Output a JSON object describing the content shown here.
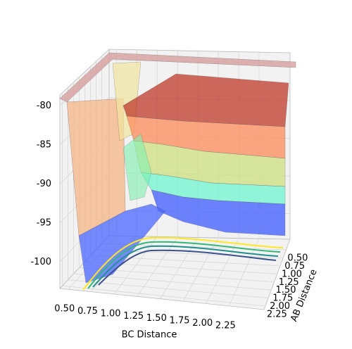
{
  "chart_data": {
    "type": "surface3d",
    "xlabel": "BC Distance",
    "ylabel": "AB Distance",
    "xlim": [
      0.41,
      2.63
    ],
    "ylim": [
      0.17,
      2.36
    ],
    "zlim": [
      -103.4,
      -78.6
    ],
    "xticks": [
      {
        "value": 0.5,
        "label": "0.50"
      },
      {
        "value": 0.75,
        "label": "0.75"
      },
      {
        "value": 1.0,
        "label": "1.00"
      },
      {
        "value": 1.25,
        "label": "1.25"
      },
      {
        "value": 1.5,
        "label": "1.50"
      },
      {
        "value": 1.75,
        "label": "1.75"
      },
      {
        "value": 2.0,
        "label": "2.00"
      },
      {
        "value": 2.25,
        "label": "2.25"
      }
    ],
    "yticks": [
      {
        "value": 0.5,
        "label": "0.50"
      },
      {
        "value": 0.75,
        "label": "0.75"
      },
      {
        "value": 1.0,
        "label": "1.00"
      },
      {
        "value": 1.25,
        "label": "1.25"
      },
      {
        "value": 1.5,
        "label": "1.50"
      },
      {
        "value": 1.75,
        "label": "1.75"
      },
      {
        "value": 2.0,
        "label": "2.00"
      },
      {
        "value": 2.25,
        "label": "2.25"
      }
    ],
    "zticks": [
      -100,
      -95,
      -90,
      -85,
      -80
    ],
    "grid": true
  }
}
